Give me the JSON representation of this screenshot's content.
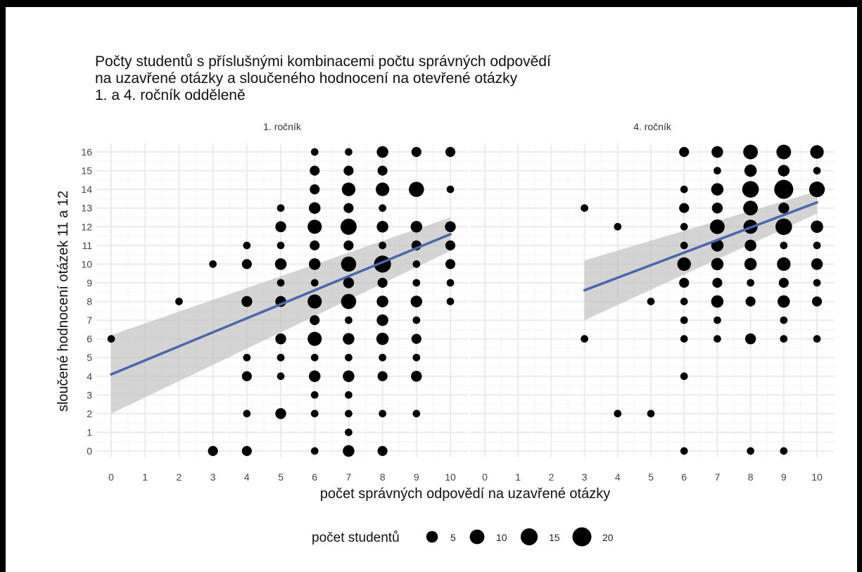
{
  "chart_data": {
    "type": "scatter",
    "title_lines": [
      "Počty studentů s příslušnými kombinacemi počtu správných odpovědí",
      "na uzavřené otázky a sloučeného hodnocení na otevřené otázky",
      "1. a 4. ročník odděleně"
    ],
    "xlabel": "počet správných odpovědí na uzavřené otázky",
    "ylabel": "sloučené hodnocení otázek 11 a 12",
    "xlim": [
      0,
      10
    ],
    "ylim": [
      0,
      16
    ],
    "x_ticks": [
      "0",
      "1",
      "2",
      "3",
      "4",
      "5",
      "6",
      "7",
      "8",
      "9",
      "10"
    ],
    "y_ticks": [
      "0",
      "1",
      "2",
      "3",
      "4",
      "5",
      "6",
      "7",
      "8",
      "9",
      "10",
      "11",
      "12",
      "13",
      "14",
      "15",
      "16"
    ],
    "grid": true,
    "legend": {
      "title": "počet studentů",
      "position": "bottom",
      "items": [
        {
          "label": "5",
          "value": 5
        },
        {
          "label": "10",
          "value": 10
        },
        {
          "label": "15",
          "value": 15
        },
        {
          "label": "20",
          "value": 20
        }
      ]
    },
    "colors": {
      "point": "#000000",
      "trend": "#4a66ac",
      "ribbon": "#bdbdbd",
      "grid": "#ebebeb"
    },
    "panels": [
      {
        "name": "1. ročník",
        "trend": {
          "x": [
            0,
            10
          ],
          "y": [
            4.1,
            11.6
          ],
          "lower": [
            2.0,
            10.7
          ],
          "upper": [
            6.2,
            12.5
          ]
        },
        "points": [
          [
            0,
            6,
            1
          ],
          [
            2,
            8,
            1
          ],
          [
            3,
            10,
            1
          ],
          [
            3,
            0,
            3
          ],
          [
            4,
            11,
            1
          ],
          [
            4,
            10,
            3
          ],
          [
            4,
            8,
            4
          ],
          [
            4,
            5,
            1
          ],
          [
            4,
            4,
            3
          ],
          [
            4,
            2,
            1
          ],
          [
            4,
            0,
            3
          ],
          [
            5,
            13,
            1
          ],
          [
            5,
            12,
            4
          ],
          [
            5,
            11,
            1
          ],
          [
            5,
            10,
            5
          ],
          [
            5,
            9,
            1
          ],
          [
            5,
            8,
            4
          ],
          [
            5,
            6,
            4
          ],
          [
            5,
            5,
            1
          ],
          [
            5,
            4,
            1
          ],
          [
            5,
            2,
            4
          ],
          [
            6,
            16,
            1
          ],
          [
            6,
            15,
            3
          ],
          [
            6,
            14,
            3
          ],
          [
            6,
            13,
            5
          ],
          [
            6,
            12,
            9
          ],
          [
            6,
            11,
            3
          ],
          [
            6,
            10,
            5
          ],
          [
            6,
            9,
            1
          ],
          [
            6,
            8,
            9
          ],
          [
            6,
            7,
            3
          ],
          [
            6,
            6,
            9
          ],
          [
            6,
            5,
            1
          ],
          [
            6,
            4,
            5
          ],
          [
            6,
            3,
            1
          ],
          [
            6,
            2,
            1
          ],
          [
            6,
            0,
            1
          ],
          [
            7,
            16,
            1
          ],
          [
            7,
            15,
            3
          ],
          [
            7,
            14,
            8
          ],
          [
            7,
            13,
            3
          ],
          [
            7,
            12,
            13
          ],
          [
            7,
            11,
            3
          ],
          [
            7,
            10,
            11
          ],
          [
            7,
            9,
            4
          ],
          [
            7,
            8,
            11
          ],
          [
            7,
            7,
            1
          ],
          [
            7,
            6,
            5
          ],
          [
            7,
            5,
            1
          ],
          [
            7,
            4,
            5
          ],
          [
            7,
            3,
            1
          ],
          [
            7,
            2,
            1
          ],
          [
            7,
            1,
            1
          ],
          [
            7,
            0,
            5
          ],
          [
            8,
            16,
            5
          ],
          [
            8,
            15,
            3
          ],
          [
            8,
            14,
            8
          ],
          [
            8,
            13,
            1
          ],
          [
            8,
            12,
            5
          ],
          [
            8,
            11,
            1
          ],
          [
            8,
            10,
            15
          ],
          [
            8,
            9,
            3
          ],
          [
            8,
            8,
            5
          ],
          [
            8,
            7,
            5
          ],
          [
            8,
            6,
            6
          ],
          [
            8,
            5,
            1
          ],
          [
            8,
            4,
            3
          ],
          [
            8,
            2,
            1
          ],
          [
            8,
            0,
            3
          ],
          [
            9,
            16,
            3
          ],
          [
            9,
            14,
            11
          ],
          [
            9,
            12,
            5
          ],
          [
            9,
            11,
            3
          ],
          [
            9,
            10,
            1
          ],
          [
            9,
            9,
            1
          ],
          [
            9,
            8,
            5
          ],
          [
            9,
            7,
            1
          ],
          [
            9,
            6,
            3
          ],
          [
            9,
            5,
            1
          ],
          [
            9,
            4,
            4
          ],
          [
            9,
            2,
            1
          ],
          [
            10,
            16,
            3
          ],
          [
            10,
            14,
            1
          ],
          [
            10,
            12,
            4
          ],
          [
            10,
            11,
            3
          ],
          [
            10,
            10,
            3
          ],
          [
            10,
            9,
            1
          ],
          [
            10,
            8,
            1
          ]
        ]
      },
      {
        "name": "4. ročník",
        "trend": {
          "x": [
            3,
            10
          ],
          "y": [
            8.6,
            13.3
          ],
          "lower": [
            7.0,
            12.7
          ],
          "upper": [
            10.2,
            13.9
          ]
        },
        "points": [
          [
            3,
            13,
            1
          ],
          [
            3,
            6,
            1
          ],
          [
            4,
            12,
            1
          ],
          [
            4,
            2,
            1
          ],
          [
            5,
            8,
            1
          ],
          [
            5,
            2,
            1
          ],
          [
            6,
            16,
            3
          ],
          [
            6,
            14,
            1
          ],
          [
            6,
            13,
            3
          ],
          [
            6,
            12,
            1
          ],
          [
            6,
            11,
            1
          ],
          [
            6,
            10,
            8
          ],
          [
            6,
            9,
            3
          ],
          [
            6,
            8,
            1
          ],
          [
            6,
            7,
            1
          ],
          [
            6,
            6,
            1
          ],
          [
            6,
            4,
            1
          ],
          [
            6,
            0,
            1
          ],
          [
            7,
            16,
            5
          ],
          [
            7,
            15,
            1
          ],
          [
            7,
            14,
            6
          ],
          [
            7,
            13,
            4
          ],
          [
            7,
            12,
            10
          ],
          [
            7,
            11,
            6
          ],
          [
            7,
            10,
            6
          ],
          [
            7,
            9,
            3
          ],
          [
            7,
            8,
            6
          ],
          [
            7,
            7,
            1
          ],
          [
            7,
            6,
            1
          ],
          [
            8,
            16,
            10
          ],
          [
            8,
            15,
            6
          ],
          [
            8,
            14,
            14
          ],
          [
            8,
            13,
            10
          ],
          [
            8,
            12,
            9
          ],
          [
            8,
            11,
            5
          ],
          [
            8,
            10,
            6
          ],
          [
            8,
            9,
            1
          ],
          [
            8,
            8,
            3
          ],
          [
            8,
            6,
            4
          ],
          [
            8,
            0,
            1
          ],
          [
            9,
            16,
            10
          ],
          [
            9,
            15,
            5
          ],
          [
            9,
            14,
            20
          ],
          [
            9,
            13,
            4
          ],
          [
            9,
            12,
            14
          ],
          [
            9,
            11,
            1
          ],
          [
            9,
            10,
            8
          ],
          [
            9,
            9,
            3
          ],
          [
            9,
            8,
            6
          ],
          [
            9,
            7,
            1
          ],
          [
            9,
            6,
            1
          ],
          [
            9,
            0,
            1
          ],
          [
            10,
            16,
            8
          ],
          [
            10,
            15,
            1
          ],
          [
            10,
            14,
            12
          ],
          [
            10,
            12,
            6
          ],
          [
            10,
            11,
            1
          ],
          [
            10,
            10,
            5
          ],
          [
            10,
            9,
            1
          ],
          [
            10,
            8,
            3
          ],
          [
            10,
            6,
            1
          ]
        ]
      }
    ]
  }
}
